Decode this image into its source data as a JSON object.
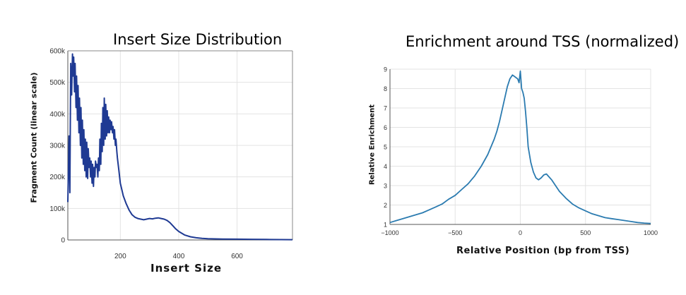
{
  "chart_data": [
    {
      "type": "line",
      "title": "Insert Size Distribution",
      "xlabel": "Insert Size",
      "ylabel": "Fragment Count (linear scale)",
      "xlim": [
        20,
        790
      ],
      "ylim": [
        0,
        600000
      ],
      "x_ticks": [
        200,
        400,
        600
      ],
      "y_ticks": [
        0,
        100000,
        200000,
        300000,
        400000,
        500000,
        600000
      ],
      "y_tick_labels": [
        "0",
        "100k",
        "200k",
        "300k",
        "400k",
        "500k",
        "600k"
      ],
      "grid": true,
      "legend": "none",
      "color": "#1f3a93",
      "series": [
        {
          "x": [
            20,
            24,
            27,
            30,
            33,
            36,
            38,
            40,
            43,
            45,
            48,
            50,
            53,
            55,
            58,
            60,
            63,
            65,
            68,
            70,
            73,
            75,
            78,
            80,
            83,
            85,
            88,
            90,
            93,
            95,
            98,
            100,
            103,
            105,
            108,
            110,
            113,
            115,
            118,
            120,
            123,
            125,
            128,
            130,
            133,
            135,
            138,
            140,
            143,
            145,
            148,
            150,
            153,
            155,
            158,
            160,
            163,
            165,
            168,
            170,
            173,
            175,
            178,
            180,
            183,
            185,
            188,
            190,
            195,
            200,
            205,
            210,
            220,
            230,
            240,
            250,
            260,
            270,
            280,
            290,
            300,
            310,
            320,
            330,
            340,
            350,
            360,
            370,
            380,
            390,
            400,
            420,
            440,
            460,
            480,
            500,
            550,
            600,
            650,
            700,
            750,
            790
          ],
          "values": [
            120000,
            330000,
            150000,
            560000,
            460000,
            590000,
            520000,
            580000,
            470000,
            560000,
            420000,
            520000,
            380000,
            490000,
            340000,
            450000,
            300000,
            420000,
            260000,
            380000,
            240000,
            350000,
            220000,
            320000,
            200000,
            310000,
            195000,
            290000,
            230000,
            260000,
            200000,
            250000,
            180000,
            240000,
            170000,
            230000,
            200000,
            250000,
            230000,
            240000,
            200000,
            260000,
            220000,
            320000,
            240000,
            370000,
            280000,
            420000,
            300000,
            450000,
            320000,
            430000,
            330000,
            410000,
            340000,
            390000,
            340000,
            380000,
            350000,
            375000,
            340000,
            360000,
            320000,
            350000,
            300000,
            320000,
            280000,
            260000,
            220000,
            180000,
            160000,
            140000,
            115000,
            95000,
            80000,
            72000,
            68000,
            66000,
            64000,
            66000,
            68000,
            67000,
            69000,
            70000,
            68000,
            66000,
            62000,
            55000,
            45000,
            35000,
            27000,
            16000,
            10000,
            7000,
            5000,
            4000,
            3000,
            2500,
            2000,
            1500,
            1200,
            1000
          ]
        }
      ]
    },
    {
      "type": "line",
      "title": "Enrichment around TSS (normalized)",
      "xlabel": "Relative Position (bp from TSS)",
      "ylabel": "Relative Enrichment",
      "xlim": [
        -1000,
        1000
      ],
      "ylim": [
        1,
        9
      ],
      "x_ticks": [
        -1000,
        -500,
        0,
        500,
        1000
      ],
      "x_tick_labels": [
        "−1000",
        "−500",
        "0",
        "500",
        "1000"
      ],
      "y_ticks": [
        1,
        2,
        3,
        4,
        5,
        6,
        7,
        8,
        9
      ],
      "y_tick_labels": [
        "1",
        "2",
        "3",
        "4",
        "5",
        "6",
        "7",
        "8",
        "9"
      ],
      "grid": true,
      "legend": "none",
      "color": "#2b7bb0",
      "series": [
        {
          "x": [
            -1000,
            -950,
            -900,
            -850,
            -800,
            -750,
            -700,
            -650,
            -600,
            -550,
            -500,
            -450,
            -400,
            -350,
            -300,
            -250,
            -200,
            -180,
            -160,
            -140,
            -120,
            -100,
            -80,
            -60,
            -40,
            -20,
            -10,
            0,
            10,
            20,
            30,
            40,
            50,
            60,
            80,
            100,
            120,
            140,
            160,
            180,
            200,
            220,
            240,
            260,
            280,
            300,
            350,
            400,
            450,
            500,
            550,
            600,
            650,
            700,
            750,
            800,
            850,
            900,
            950,
            1000
          ],
          "values": [
            1.1,
            1.2,
            1.3,
            1.4,
            1.5,
            1.6,
            1.75,
            1.9,
            2.05,
            2.3,
            2.5,
            2.8,
            3.1,
            3.5,
            4.0,
            4.6,
            5.4,
            5.8,
            6.3,
            6.9,
            7.5,
            8.1,
            8.5,
            8.7,
            8.6,
            8.5,
            8.3,
            8.9,
            8.0,
            7.8,
            7.5,
            6.8,
            6.0,
            5.0,
            4.2,
            3.7,
            3.4,
            3.3,
            3.4,
            3.55,
            3.6,
            3.45,
            3.3,
            3.1,
            2.9,
            2.7,
            2.35,
            2.05,
            1.85,
            1.7,
            1.55,
            1.45,
            1.35,
            1.3,
            1.25,
            1.2,
            1.15,
            1.1,
            1.07,
            1.05
          ]
        }
      ]
    }
  ]
}
